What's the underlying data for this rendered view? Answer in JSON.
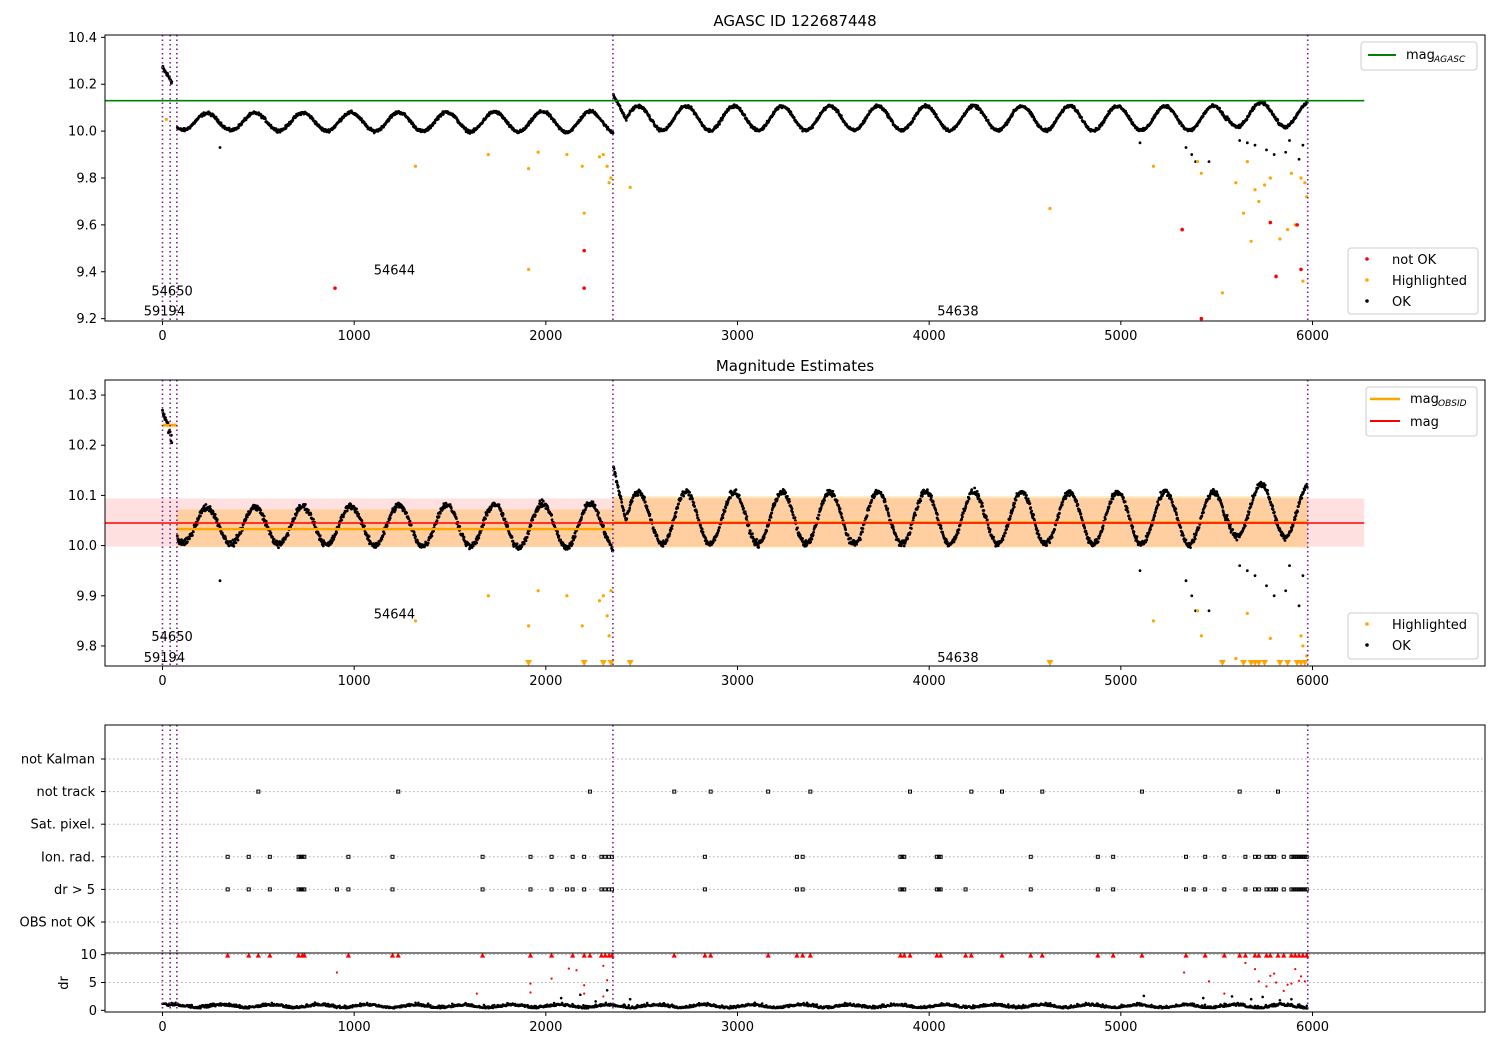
{
  "chart_data": [
    {
      "type": "scatter",
      "title": "AGASC ID 122687448",
      "xlim": [
        -300,
        6900
      ],
      "ylim": [
        9.19,
        10.41
      ],
      "xticks": [
        "0",
        "1000",
        "2000",
        "3000",
        "4000",
        "5000",
        "6000"
      ],
      "yticks": [
        "9.2",
        "9.4",
        "9.6",
        "9.8",
        "10.0",
        "10.2",
        "10.4"
      ],
      "grid": false,
      "legend_top": {
        "placement": "top-right",
        "entries": [
          {
            "label": "mag",
            "sub": "AGASC",
            "color": "#008000"
          }
        ]
      },
      "legend_bottom": {
        "placement": "bottom-right",
        "entries": [
          {
            "label": "not OK",
            "color": "#ff0000"
          },
          {
            "label": "Highlighted",
            "color": "#ffa500"
          },
          {
            "label": "OK",
            "color": "#000000"
          }
        ]
      },
      "reference_line": {
        "name": "mag_AGASC",
        "y": 10.13,
        "x_range": [
          -300,
          6270
        ],
        "color": "#008000"
      },
      "obsid_lines": [
        0,
        40,
        75,
        2350,
        5975
      ],
      "obsid_labels": [
        {
          "text": "54650",
          "x": 50,
          "y": 9.32
        },
        {
          "text": "59194",
          "x": 10,
          "y": 9.235
        },
        {
          "text": "54644",
          "x": 1210,
          "y": 9.41
        },
        {
          "text": "54638",
          "x": 4150,
          "y": 9.235
        }
      ],
      "series": [
        {
          "name": "OK",
          "color": "#000000"
        },
        {
          "name": "Highlighted",
          "color": "#ffa500",
          "points": [
            [
              20,
              10.05
            ],
            [
              1320,
              9.85
            ],
            [
              1700,
              9.9
            ],
            [
              1910,
              9.84
            ],
            [
              1960,
              9.91
            ],
            [
              2110,
              9.9
            ],
            [
              2190,
              9.85
            ],
            [
              2280,
              9.89
            ],
            [
              2300,
              9.9
            ],
            [
              2320,
              9.85
            ],
            [
              2330,
              9.78
            ],
            [
              2340,
              9.8
            ],
            [
              2200,
              9.65
            ],
            [
              1910,
              9.41
            ],
            [
              2440,
              9.76
            ],
            [
              4630,
              9.67
            ],
            [
              5170,
              9.85
            ],
            [
              5400,
              9.87
            ],
            [
              5420,
              9.82
            ],
            [
              5530,
              9.31
            ],
            [
              5600,
              9.78
            ],
            [
              5640,
              9.65
            ],
            [
              5660,
              9.87
            ],
            [
              5680,
              9.53
            ],
            [
              5700,
              9.75
            ],
            [
              5720,
              9.7
            ],
            [
              5750,
              9.77
            ],
            [
              5780,
              9.8
            ],
            [
              5830,
              9.54
            ],
            [
              5870,
              9.58
            ],
            [
              5890,
              9.82
            ],
            [
              5910,
              9.6
            ],
            [
              5940,
              9.8
            ],
            [
              5950,
              9.36
            ],
            [
              5960,
              9.78
            ],
            [
              5970,
              9.72
            ]
          ]
        },
        {
          "name": "not OK",
          "color": "#ff0000",
          "points": [
            [
              900,
              9.33
            ],
            [
              2200,
              9.49
            ],
            [
              2200,
              9.33
            ],
            [
              5320,
              9.58
            ],
            [
              5420,
              9.2
            ],
            [
              5780,
              9.61
            ],
            [
              5810,
              9.38
            ],
            [
              5920,
              9.6
            ],
            [
              5940,
              9.41
            ]
          ]
        }
      ]
    },
    {
      "type": "scatter",
      "title": "Magnitude Estimates",
      "xlim": [
        -300,
        6900
      ],
      "ylim": [
        9.76,
        10.33
      ],
      "xticks": [
        "0",
        "1000",
        "2000",
        "3000",
        "4000",
        "5000",
        "6000"
      ],
      "yticks": [
        "9.8",
        "9.9",
        "10.0",
        "10.1",
        "10.2",
        "10.3"
      ],
      "grid": false,
      "legend_top": {
        "placement": "top-right",
        "entries": [
          {
            "label": "mag",
            "sub": "OBSID",
            "color": "#ffa500"
          },
          {
            "label": "mag",
            "color": "#ff0000"
          }
        ]
      },
      "legend_bottom": {
        "placement": "bottom-right",
        "entries": [
          {
            "label": "Highlighted",
            "color": "#ffa500"
          },
          {
            "label": "OK",
            "color": "#000000"
          }
        ]
      },
      "mag_line": {
        "y": 10.045,
        "x_range": [
          -300,
          6270
        ],
        "band": [
          9.998,
          10.094
        ],
        "color": "#ff0000"
      },
      "obsid_segments": [
        {
          "x": [
            0,
            75
          ],
          "y": 10.24,
          "band": [
            10.235,
            10.245
          ]
        },
        {
          "x": [
            75,
            2350
          ],
          "y": 10.033,
          "band": [
            9.997,
            10.072
          ]
        },
        {
          "x": [
            2350,
            5975
          ],
          "y": 10.046,
          "band": [
            9.996,
            10.098
          ]
        }
      ],
      "obsid_lines": [
        0,
        40,
        75,
        2350,
        5975
      ],
      "obsid_labels": [
        {
          "text": "54650",
          "x": 50,
          "y": 9.82
        },
        {
          "text": "59194",
          "x": 10,
          "y": 9.778
        },
        {
          "text": "54644",
          "x": 1210,
          "y": 9.865
        },
        {
          "text": "54638",
          "x": 4150,
          "y": 9.778
        }
      ],
      "series": [
        {
          "name": "OK",
          "color": "#000000"
        },
        {
          "name": "Highlighted",
          "color": "#ffa500",
          "points": [
            [
              1320,
              9.85
            ],
            [
              1700,
              9.9
            ],
            [
              1910,
              9.84
            ],
            [
              1960,
              9.91
            ],
            [
              2110,
              9.9
            ],
            [
              2190,
              9.84
            ],
            [
              2280,
              9.89
            ],
            [
              2300,
              9.9
            ],
            [
              2320,
              9.86
            ],
            [
              2330,
              9.82
            ],
            [
              2340,
              9.91
            ],
            [
              5170,
              9.85
            ],
            [
              5400,
              9.87
            ],
            [
              5420,
              9.82
            ],
            [
              5600,
              9.775
            ],
            [
              5660,
              9.865
            ],
            [
              5780,
              9.815
            ],
            [
              5940,
              9.82
            ],
            [
              5950,
              9.8
            ],
            [
              5970,
              9.78
            ]
          ]
        },
        {
          "name": "Highlighted (off scale)",
          "color": "#ffa500",
          "marker": "triangle-down",
          "points": [
            [
              1910,
              9.766
            ],
            [
              2200,
              9.766
            ],
            [
              2300,
              9.766
            ],
            [
              2340,
              9.766
            ],
            [
              2440,
              9.766
            ],
            [
              4630,
              9.766
            ],
            [
              5530,
              9.766
            ],
            [
              5640,
              9.766
            ],
            [
              5680,
              9.766
            ],
            [
              5700,
              9.766
            ],
            [
              5720,
              9.766
            ],
            [
              5750,
              9.766
            ],
            [
              5830,
              9.766
            ],
            [
              5870,
              9.766
            ],
            [
              5920,
              9.766
            ],
            [
              5940,
              9.766
            ],
            [
              5960,
              9.766
            ]
          ]
        }
      ]
    },
    {
      "type": "scatter",
      "title": "",
      "xlim": [
        -300,
        6900
      ],
      "xticks": [
        "0",
        "1000",
        "2000",
        "3000",
        "4000",
        "5000",
        "6000"
      ],
      "flag_rows": [
        {
          "label": "not Kalman",
          "times": []
        },
        {
          "label": "not track",
          "times": [
            500,
            1230,
            2230,
            2670,
            2860,
            3160,
            3380,
            3900,
            4220,
            4380,
            4590,
            5110,
            5620,
            5820
          ]
        },
        {
          "label": "Sat. pixel.",
          "times": []
        },
        {
          "label": "Ion. rad.",
          "times": [
            340,
            450,
            560,
            710,
            720,
            730,
            740,
            970,
            1200,
            1670,
            1920,
            2030,
            2140,
            2200,
            2290,
            2310,
            2330,
            2345,
            2830,
            3310,
            3340,
            3850,
            3860,
            3870,
            4040,
            4050,
            4060,
            4530,
            4880,
            4960,
            5340,
            5440,
            5540,
            5650,
            5700,
            5720,
            5760,
            5780,
            5800,
            5850,
            5890,
            5900,
            5910,
            5920,
            5930,
            5940,
            5950,
            5960,
            5970
          ]
        },
        {
          "label": "dr > 5",
          "times": [
            340,
            450,
            560,
            710,
            720,
            730,
            740,
            910,
            970,
            1200,
            1670,
            1920,
            2030,
            2110,
            2140,
            2200,
            2290,
            2310,
            2330,
            2345,
            2830,
            3310,
            3340,
            3850,
            3860,
            3870,
            4040,
            4050,
            4060,
            4190,
            4530,
            4880,
            4960,
            5340,
            5380,
            5440,
            5540,
            5650,
            5700,
            5720,
            5760,
            5780,
            5800,
            5810,
            5850,
            5890,
            5900,
            5910,
            5920,
            5930,
            5940,
            5950,
            5960,
            5970
          ]
        },
        {
          "label": "OBS not OK",
          "times": []
        }
      ],
      "obsid_lines": [
        0,
        40,
        75,
        2350,
        5975
      ]
    },
    {
      "type": "scatter",
      "title": "",
      "ylabel": "dr",
      "xlim": [
        -300,
        6900
      ],
      "ylim": [
        -0.3,
        10.3
      ],
      "xticks": [
        "0",
        "1000",
        "2000",
        "3000",
        "4000",
        "5000",
        "6000"
      ],
      "yticks": [
        "0",
        "5",
        "10"
      ],
      "obsid_lines": [
        0,
        40,
        75,
        2350,
        5975
      ],
      "series": [
        {
          "name": "dr",
          "color": "#000000"
        },
        {
          "name": "dr > 5",
          "color": "#ff0000",
          "points": [
            [
              910,
              6.8
            ],
            [
              1640,
              3.0
            ],
            [
              1920,
              4.8
            ],
            [
              1920,
              3.2
            ],
            [
              2030,
              5.7
            ],
            [
              2120,
              7.5
            ],
            [
              2160,
              7.2
            ],
            [
              2200,
              4.5
            ],
            [
              2200,
              3.0
            ],
            [
              2300,
              8.0
            ],
            [
              2320,
              5.4
            ],
            [
              2300,
              2.5
            ],
            [
              5330,
              6.8
            ],
            [
              5460,
              5.2
            ],
            [
              5540,
              3.0
            ],
            [
              5650,
              8.5
            ],
            [
              5700,
              7.4
            ],
            [
              5720,
              5.2
            ],
            [
              5760,
              4.3
            ],
            [
              5780,
              6.2
            ],
            [
              5800,
              6.6
            ],
            [
              5810,
              5.0
            ],
            [
              5850,
              3.5
            ],
            [
              5870,
              4.6
            ],
            [
              5890,
              4.8
            ],
            [
              5910,
              7.4
            ],
            [
              5930,
              5.3
            ],
            [
              5940,
              6.1
            ],
            [
              5960,
              5.2
            ]
          ]
        },
        {
          "name": "dr > 10",
          "color": "#ff0000",
          "marker": "triangle-up",
          "points": [
            [
              340,
              9.9
            ],
            [
              450,
              9.9
            ],
            [
              500,
              9.9
            ],
            [
              560,
              9.9
            ],
            [
              710,
              9.9
            ],
            [
              730,
              9.9
            ],
            [
              740,
              9.9
            ],
            [
              970,
              9.9
            ],
            [
              1200,
              9.9
            ],
            [
              1230,
              9.9
            ],
            [
              1670,
              9.9
            ],
            [
              1920,
              9.9
            ],
            [
              2030,
              9.9
            ],
            [
              2140,
              9.9
            ],
            [
              2200,
              9.9
            ],
            [
              2230,
              9.9
            ],
            [
              2290,
              9.9
            ],
            [
              2310,
              9.9
            ],
            [
              2330,
              9.9
            ],
            [
              2345,
              9.9
            ],
            [
              2670,
              9.9
            ],
            [
              2830,
              9.9
            ],
            [
              2860,
              9.9
            ],
            [
              3160,
              9.9
            ],
            [
              3310,
              9.9
            ],
            [
              3340,
              9.9
            ],
            [
              3380,
              9.9
            ],
            [
              3850,
              9.9
            ],
            [
              3870,
              9.9
            ],
            [
              3900,
              9.9
            ],
            [
              4040,
              9.9
            ],
            [
              4060,
              9.9
            ],
            [
              4190,
              9.9
            ],
            [
              4220,
              9.9
            ],
            [
              4380,
              9.9
            ],
            [
              4530,
              9.9
            ],
            [
              4590,
              9.9
            ],
            [
              4880,
              9.9
            ],
            [
              4960,
              9.9
            ],
            [
              5110,
              9.9
            ],
            [
              5340,
              9.9
            ],
            [
              5440,
              9.9
            ],
            [
              5540,
              9.9
            ],
            [
              5620,
              9.9
            ],
            [
              5650,
              9.9
            ],
            [
              5700,
              9.9
            ],
            [
              5720,
              9.9
            ],
            [
              5760,
              9.9
            ],
            [
              5780,
              9.9
            ],
            [
              5820,
              9.9
            ],
            [
              5850,
              9.9
            ],
            [
              5890,
              9.9
            ],
            [
              5910,
              9.9
            ],
            [
              5930,
              9.9
            ],
            [
              5950,
              9.9
            ],
            [
              5970,
              9.9
            ]
          ]
        }
      ]
    }
  ]
}
